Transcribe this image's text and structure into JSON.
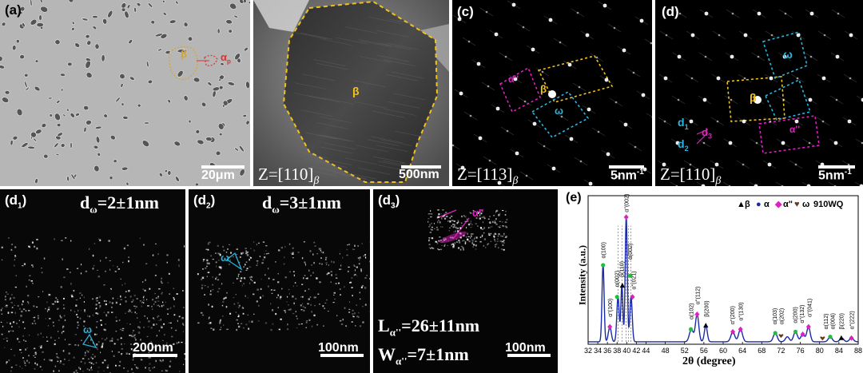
{
  "panels": {
    "a": {
      "label": "(a)",
      "scale": "20μm",
      "marker_beta": "β",
      "marker_alpha": "α",
      "marker_alpha_sub": "p"
    },
    "b": {
      "zone": "Z=[110]",
      "zone_sub": "β",
      "scale": "500nm",
      "marker_beta": "β"
    },
    "c": {
      "label": "(c)",
      "zone": "Z=[113]",
      "zone_sub": "β",
      "scale": "5nm",
      "scale_sup": "-1",
      "marker_alpha2": "α''",
      "marker_beta": "β",
      "marker_omega": "ω"
    },
    "d": {
      "label": "(d)",
      "zone": "Z=[110]",
      "zone_sub": "β",
      "scale": "5nm",
      "scale_sup": "-1",
      "marker_omega": "ω",
      "marker_beta": "β",
      "marker_alpha2": "α''",
      "d1": "d",
      "d1_sub": "1",
      "d2": "d",
      "d2_sub": "2",
      "d3": "d",
      "d3_sub": "3"
    },
    "d1": {
      "label": "(d",
      "label_sub": "1",
      "label_end": ")",
      "value_pre": "d",
      "value_sub": "ω",
      "value": "=2±1nm",
      "marker_omega": "ω",
      "scale": "200nm"
    },
    "d2": {
      "label": "(d",
      "label_sub": "2",
      "label_end": ")",
      "value_pre": "d",
      "value_sub": "ω",
      "value": "=3±1nm",
      "marker_omega": "ω",
      "scale": "100nm"
    },
    "d3": {
      "label": "(d",
      "label_sub": "3",
      "label_end": ")",
      "marker_alpha2": "α''",
      "l_pre": "L",
      "l_sub": "α''",
      "l_value": "=26±11nm",
      "w_pre": "W",
      "w_sub": "α''",
      "w_value": "=7±1nm",
      "scale": "100nm"
    }
  },
  "chart_data": {
    "type": "line",
    "panel_label": "(e)",
    "xlabel": "2θ (degree)",
    "ylabel": "Intensity (a.u.)",
    "xlim": [
      32,
      88
    ],
    "xticks": [
      32,
      34,
      36,
      38,
      40,
      42,
      44,
      48,
      52,
      56,
      60,
      64,
      68,
      72,
      76,
      80,
      84,
      88
    ],
    "legend": [
      {
        "symbol": "▲",
        "name": "β",
        "color": "#000000"
      },
      {
        "symbol": "●",
        "name": "α",
        "color": "#1a2aa8"
      },
      {
        "symbol": "◆",
        "name": "α\"",
        "color": "#e020c0"
      },
      {
        "symbol": "♥",
        "name": "ω",
        "color": "#6b3a1e"
      },
      {
        "symbol": "",
        "name": "910WQ",
        "color": "#000000"
      }
    ],
    "series": [
      {
        "color": "#1a2aa8",
        "peaks": [
          {
            "x": 35.1,
            "h": 0.62,
            "w": 0.22
          },
          {
            "x": 36.5,
            "h": 0.12,
            "w": 0.3
          },
          {
            "x": 38.2,
            "h": 0.36,
            "w": 0.25
          },
          {
            "x": 39.0,
            "h": 0.45,
            "w": 0.2
          },
          {
            "x": 39.9,
            "h": 1.0,
            "w": 0.22
          },
          {
            "x": 40.9,
            "h": 0.36,
            "w": 0.25
          },
          {
            "x": 53.4,
            "h": 0.1,
            "w": 0.4
          },
          {
            "x": 54.6,
            "h": 0.22,
            "w": 0.35
          },
          {
            "x": 56.4,
            "h": 0.13,
            "w": 0.3
          },
          {
            "x": 62.0,
            "h": 0.08,
            "w": 0.4
          },
          {
            "x": 63.6,
            "h": 0.1,
            "w": 0.4
          },
          {
            "x": 70.8,
            "h": 0.07,
            "w": 0.4
          },
          {
            "x": 73.3,
            "h": 0.04,
            "w": 0.4
          },
          {
            "x": 75.0,
            "h": 0.08,
            "w": 0.4
          },
          {
            "x": 76.5,
            "h": 0.06,
            "w": 0.4
          },
          {
            "x": 77.7,
            "h": 0.12,
            "w": 0.35
          },
          {
            "x": 82.2,
            "h": 0.04,
            "w": 0.4
          },
          {
            "x": 84.6,
            "h": 0.03,
            "w": 0.4
          },
          {
            "x": 86.6,
            "h": 0.03,
            "w": 0.4
          }
        ]
      }
    ],
    "annotations": [
      {
        "text": "α(100)",
        "x": 35.1,
        "y": 0.67
      },
      {
        "text": "α''(100)",
        "x": 36.5,
        "y": 0.2
      },
      {
        "text": "α(002)",
        "x": 37.9,
        "y": 0.44
      },
      {
        "text": "β(110)",
        "x": 38.9,
        "y": 0.52
      },
      {
        "text": "α''(002)",
        "x": 39.9,
        "y": 1.04
      },
      {
        "text": "α(002)",
        "x": 40.6,
        "y": 0.66
      },
      {
        "text": "α''(021)",
        "x": 41.4,
        "y": 0.42
      },
      {
        "text": "α(102)",
        "x": 53.3,
        "y": 0.18
      },
      {
        "text": "α''(112)",
        "x": 54.6,
        "y": 0.3
      },
      {
        "text": "β(200)",
        "x": 56.4,
        "y": 0.2
      },
      {
        "text": "α''(200)",
        "x": 61.8,
        "y": 0.14
      },
      {
        "text": "α''(130)",
        "x": 63.6,
        "y": 0.17
      },
      {
        "text": "α(103)",
        "x": 70.6,
        "y": 0.14
      },
      {
        "text": "α(202)",
        "x": 72.0,
        "y": 0.14
      },
      {
        "text": "α(200)",
        "x": 74.8,
        "y": 0.15
      },
      {
        "text": "α''(132)",
        "x": 76.2,
        "y": 0.15
      },
      {
        "text": "α''(041)",
        "x": 77.8,
        "y": 0.2
      },
      {
        "text": "α(112)",
        "x": 81.2,
        "y": 0.1
      },
      {
        "text": "α(004)",
        "x": 82.6,
        "y": 0.1
      },
      {
        "text": "β(220)",
        "x": 84.4,
        "y": 0.1
      },
      {
        "text": "α''(222)",
        "x": 86.6,
        "y": 0.1
      }
    ],
    "markers": [
      {
        "x": 35.1,
        "y": 0.635,
        "type": "circle"
      },
      {
        "x": 36.5,
        "y": 0.14,
        "type": "diamond"
      },
      {
        "x": 38.0,
        "y": 0.38,
        "type": "circle"
      },
      {
        "x": 39.1,
        "y": 0.47,
        "type": "triangle"
      },
      {
        "x": 39.9,
        "y": 1.02,
        "type": "diamond"
      },
      {
        "x": 40.7,
        "y": 0.55,
        "type": "circle"
      },
      {
        "x": 41.2,
        "y": 0.38,
        "type": "diamond"
      },
      {
        "x": 53.3,
        "y": 0.12,
        "type": "circle"
      },
      {
        "x": 54.6,
        "y": 0.24,
        "type": "diamond"
      },
      {
        "x": 56.4,
        "y": 0.15,
        "type": "triangle"
      },
      {
        "x": 62.0,
        "y": 0.1,
        "type": "diamond"
      },
      {
        "x": 63.6,
        "y": 0.12,
        "type": "diamond"
      },
      {
        "x": 70.8,
        "y": 0.09,
        "type": "circle"
      },
      {
        "x": 72.0,
        "y": 0.07,
        "type": "heart"
      },
      {
        "x": 75.0,
        "y": 0.1,
        "type": "circle"
      },
      {
        "x": 76.5,
        "y": 0.08,
        "type": "diamond"
      },
      {
        "x": 77.7,
        "y": 0.14,
        "type": "diamond"
      },
      {
        "x": 80.6,
        "y": 0.05,
        "type": "heart"
      },
      {
        "x": 82.2,
        "y": 0.06,
        "type": "circle"
      },
      {
        "x": 84.5,
        "y": 0.05,
        "type": "triangle"
      },
      {
        "x": 86.6,
        "y": 0.05,
        "type": "diamond"
      }
    ],
    "dashed_lines": [
      38.2,
      39.0,
      39.9,
      40.4,
      40.9
    ]
  }
}
